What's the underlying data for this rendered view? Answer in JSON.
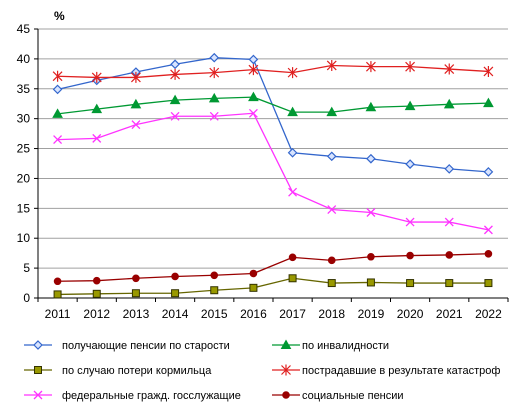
{
  "chart_data": {
    "type": "line",
    "unit_label": "%",
    "x": [
      "2011",
      "2012",
      "2013",
      "2014",
      "2015",
      "2016",
      "2017",
      "2018",
      "2019",
      "2020",
      "2021",
      "2022"
    ],
    "ylim": [
      0,
      45
    ],
    "yticks": [
      "0",
      "5",
      "10",
      "15",
      "20",
      "25",
      "30",
      "35",
      "40",
      "45"
    ],
    "grid": true,
    "legend_position": "bottom",
    "series": [
      {
        "name": "получающие пенсии по старости",
        "color": "#3366cc",
        "marker": "diamond",
        "values": [
          34.9,
          36.4,
          37.8,
          39.1,
          40.2,
          39.9,
          24.3,
          23.7,
          23.3,
          22.4,
          21.6,
          21.1
        ]
      },
      {
        "name": "по инвалидности",
        "color": "#009933",
        "marker": "triangle",
        "values": [
          30.8,
          31.6,
          32.4,
          33.1,
          33.4,
          33.6,
          31.1,
          31.1,
          31.9,
          32.1,
          32.4,
          32.6
        ]
      },
      {
        "name": "по случаю потери кормильца",
        "color": "#666600",
        "marker": "square",
        "values": [
          0.6,
          0.7,
          0.8,
          0.8,
          1.3,
          1.7,
          3.3,
          2.5,
          2.6,
          2.5,
          2.5,
          2.5
        ]
      },
      {
        "name": "пострадавшие в результате катастроф",
        "color": "#e02020",
        "marker": "star",
        "values": [
          37.1,
          36.9,
          36.9,
          37.4,
          37.7,
          38.2,
          37.7,
          38.9,
          38.7,
          38.7,
          38.3,
          37.9
        ]
      },
      {
        "name": "федеральные  гражд. госслужащие",
        "color": "#ff33ff",
        "marker": "x",
        "values": [
          26.5,
          26.7,
          29.0,
          30.4,
          30.4,
          30.9,
          17.7,
          14.8,
          14.3,
          12.7,
          12.7,
          11.4
        ]
      },
      {
        "name": "социальные пенсии",
        "color": "#990000",
        "marker": "circle",
        "values": [
          2.8,
          2.9,
          3.3,
          3.6,
          3.8,
          4.1,
          6.8,
          6.3,
          6.9,
          7.1,
          7.2,
          7.4
        ]
      }
    ]
  }
}
